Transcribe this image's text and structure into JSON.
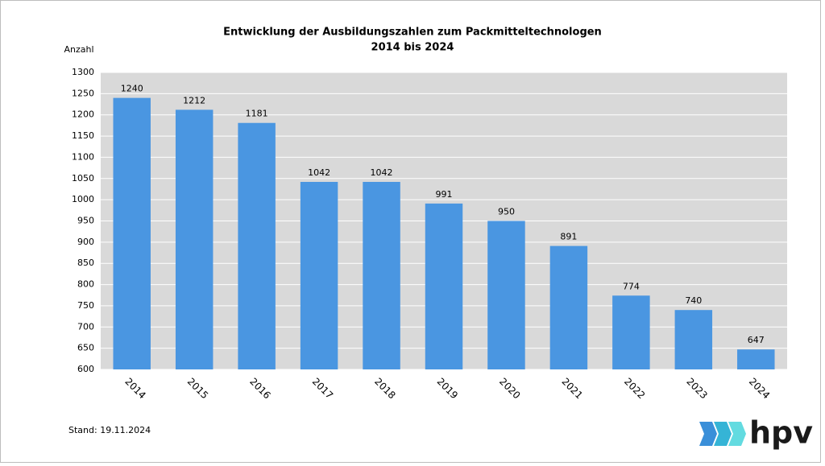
{
  "chart_data": {
    "type": "bar",
    "title": "Entwicklung der Ausbildungszahlen zum Packmitteltechnologen",
    "subtitle": "2014 bis 2024",
    "y_label": "Anzahl",
    "categories": [
      "2014",
      "2015",
      "2016",
      "2017",
      "2018",
      "2019",
      "2020",
      "2021",
      "2022",
      "2023",
      "2024"
    ],
    "values": [
      1240,
      1212,
      1181,
      1042,
      1042,
      991,
      950,
      891,
      774,
      740,
      647
    ],
    "color": "#4a96e1",
    "ylim": [
      600,
      1300
    ],
    "yticks": [
      600,
      650,
      700,
      750,
      800,
      850,
      900,
      950,
      1000,
      1050,
      1100,
      1150,
      1200,
      1250,
      1300
    ],
    "grid": true,
    "footnote": "Stand: 19.11.2024"
  },
  "logo_text": "hpv"
}
